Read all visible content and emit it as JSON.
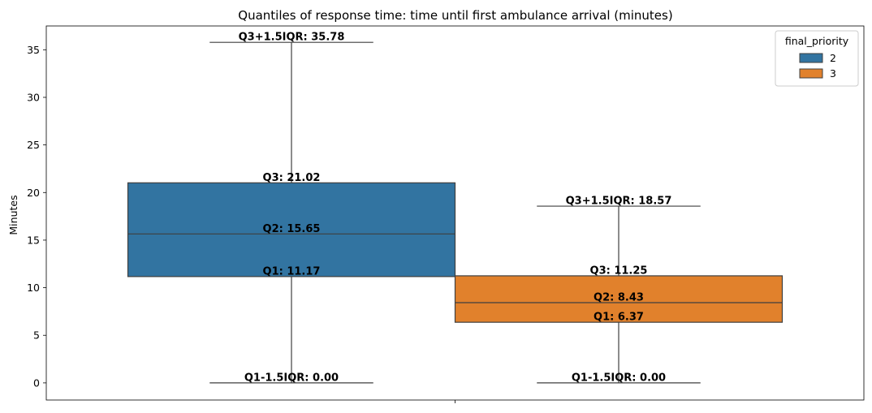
{
  "chart_data": {
    "type": "box",
    "title": "Quantiles of response time: time until first ambulance arrival (minutes)",
    "xlabel": "",
    "ylabel": "Minutes",
    "ylim": [
      -1.8,
      37.5
    ],
    "yticks": [
      0,
      5,
      10,
      15,
      20,
      25,
      30,
      35
    ],
    "legend": {
      "title": "final_priority",
      "position": "top-right"
    },
    "series": [
      {
        "name": "2",
        "color": "#3274a1",
        "whisker_low": 0.0,
        "q1": 11.17,
        "q2": 15.65,
        "q3": 21.02,
        "whisker_high": 35.78,
        "labels": {
          "whisker_high": "Q3+1.5IQR: 35.78",
          "q3": "Q3: 21.02",
          "q2": "Q2: 15.65",
          "q1": "Q1: 11.17",
          "whisker_low": "Q1-1.5IQR: 0.00"
        }
      },
      {
        "name": "3",
        "color": "#e1812c",
        "whisker_low": 0.0,
        "q1": 6.37,
        "q2": 8.43,
        "q3": 11.25,
        "whisker_high": 18.57,
        "labels": {
          "whisker_high": "Q3+1.5IQR: 18.57",
          "q3": "Q3: 11.25",
          "q2": "Q2: 8.43",
          "q1": "Q1: 6.37",
          "whisker_low": "Q1-1.5IQR: 0.00"
        }
      }
    ]
  }
}
